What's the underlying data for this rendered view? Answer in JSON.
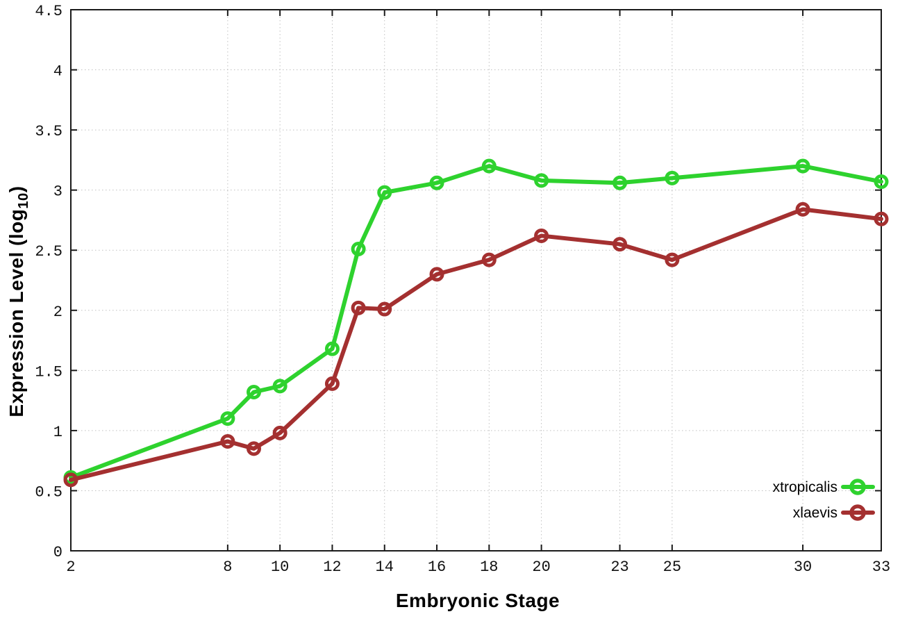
{
  "chart_data": {
    "type": "line",
    "title": "",
    "xlabel": "Embryonic Stage",
    "ylabel": "Expression Level (log10)",
    "ylabel_parts": {
      "prefix": "Expression Level (log",
      "subscript": "10",
      "suffix": ")"
    },
    "x": [
      2,
      8,
      9,
      10,
      12,
      13,
      14,
      16,
      18,
      20,
      23,
      25,
      30,
      33
    ],
    "x_ticks": [
      2,
      8,
      10,
      12,
      14,
      16,
      18,
      20,
      23,
      25,
      30,
      33
    ],
    "y_ticks": [
      0,
      0.5,
      1,
      1.5,
      2,
      2.5,
      3,
      3.5,
      4,
      4.5
    ],
    "xlim": [
      2,
      33
    ],
    "ylim": [
      0,
      4.5
    ],
    "grid": true,
    "grid_style": "dotted",
    "grid_color": "#c0c0c0",
    "axis_color": "#1a1a1a",
    "legend_position": "inside-bottom-right",
    "series": [
      {
        "name": "xtropicalis",
        "color": "#2ed22e",
        "values": [
          0.61,
          1.1,
          1.32,
          1.37,
          1.68,
          2.51,
          2.98,
          3.06,
          3.2,
          3.08,
          3.06,
          3.1,
          3.2,
          3.07
        ]
      },
      {
        "name": "xlaevis",
        "color": "#a43030",
        "values": [
          0.59,
          0.91,
          0.85,
          0.98,
          1.39,
          2.02,
          2.01,
          2.3,
          2.42,
          2.62,
          2.55,
          2.42,
          2.84,
          2.76
        ]
      }
    ]
  }
}
